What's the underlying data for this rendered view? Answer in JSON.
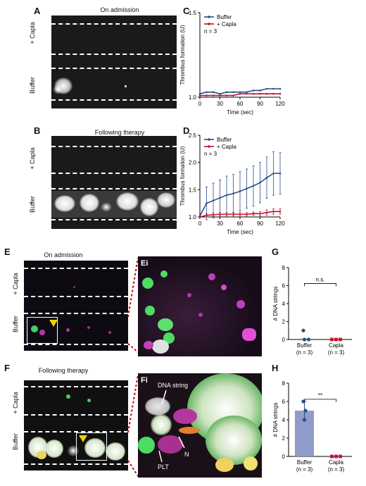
{
  "panels": {
    "A": {
      "letter": "A",
      "title": "On admission",
      "rows": [
        "+ Capla",
        "Buffer"
      ]
    },
    "B": {
      "letter": "B",
      "title": "Following therapy",
      "rows": [
        "+ Capla",
        "Buffer"
      ]
    },
    "E": {
      "letter": "E",
      "title": "On admission",
      "rows": [
        "+ Capla",
        "Buffer"
      ],
      "zoom_letter": "Ei"
    },
    "F": {
      "letter": "F",
      "title": "Following therapy",
      "rows": [
        "+ Capla",
        "Buffer"
      ],
      "zoom_letter": "Fi",
      "annotations": {
        "dna": "DNA string",
        "n": "N",
        "plt": "PLT"
      }
    },
    "C": {
      "letter": "C"
    },
    "D": {
      "letter": "D"
    },
    "G": {
      "letter": "G"
    },
    "H": {
      "letter": "H"
    }
  },
  "colors": {
    "buffer": "#2b4f8a",
    "capla": "#c8102e",
    "bar": "#8f9bc8",
    "arrow": "#f2d000",
    "zoom_line": "#cc0000"
  },
  "chart_data": [
    {
      "id": "C",
      "type": "line",
      "xlabel": "Time (sec)",
      "ylabel": "Thrombus formation (U)",
      "xlim": [
        0,
        120
      ],
      "ylim": [
        1.0,
        1.5
      ],
      "xticks": [
        0,
        30,
        60,
        90,
        120
      ],
      "yticks": [
        1.0,
        1.5
      ],
      "n_label": "n = 3",
      "legend": "top-left",
      "series": [
        {
          "name": "Buffer",
          "x": [
            0,
            10,
            20,
            30,
            40,
            50,
            60,
            70,
            80,
            90,
            100,
            110,
            120
          ],
          "y": [
            1.02,
            1.03,
            1.03,
            1.02,
            1.03,
            1.03,
            1.03,
            1.03,
            1.04,
            1.04,
            1.05,
            1.05,
            1.05
          ]
        },
        {
          "name": "+ Capla",
          "x": [
            0,
            10,
            20,
            30,
            40,
            50,
            60,
            70,
            80,
            90,
            100,
            110,
            120
          ],
          "y": [
            1.01,
            1.01,
            1.01,
            1.01,
            1.01,
            1.01,
            1.02,
            1.02,
            1.02,
            1.02,
            1.02,
            1.02,
            1.02
          ]
        }
      ]
    },
    {
      "id": "D",
      "type": "line",
      "xlabel": "Time (sec)",
      "ylabel": "Thrombus formation (U)",
      "xlim": [
        0,
        120
      ],
      "ylim": [
        1.0,
        2.5
      ],
      "xticks": [
        0,
        30,
        60,
        90,
        120
      ],
      "yticks": [
        1.0,
        1.5,
        2.0,
        2.5
      ],
      "n_label": "n = 3",
      "legend": "top-left",
      "series": [
        {
          "name": "Buffer",
          "x": [
            0,
            10,
            20,
            30,
            40,
            50,
            60,
            70,
            80,
            90,
            100,
            110,
            120
          ],
          "y": [
            1.02,
            1.25,
            1.3,
            1.35,
            1.4,
            1.43,
            1.47,
            1.52,
            1.57,
            1.63,
            1.72,
            1.8,
            1.8
          ],
          "err": [
            0.0,
            0.3,
            0.32,
            0.33,
            0.35,
            0.35,
            0.36,
            0.36,
            0.37,
            0.37,
            0.38,
            0.4,
            0.38
          ]
        },
        {
          "name": "+ Capla",
          "x": [
            0,
            10,
            20,
            30,
            40,
            50,
            60,
            70,
            80,
            90,
            100,
            110,
            120
          ],
          "y": [
            1.0,
            1.03,
            1.04,
            1.05,
            1.05,
            1.05,
            1.05,
            1.05,
            1.06,
            1.06,
            1.08,
            1.1,
            1.1
          ],
          "err": [
            0.0,
            0.03,
            0.03,
            0.03,
            0.03,
            0.03,
            0.03,
            0.03,
            0.03,
            0.04,
            0.05,
            0.05,
            0.05
          ]
        }
      ]
    },
    {
      "id": "G",
      "type": "bar",
      "ylabel": "# DNA strings",
      "ylim": [
        0,
        8
      ],
      "yticks": [
        0,
        2,
        4,
        6,
        8
      ],
      "categories": [
        "Buffer",
        "Capla"
      ],
      "sublabels": [
        "(n = 3)",
        "(n = 3)"
      ],
      "values": [
        0,
        0
      ],
      "points": [
        [
          1,
          0,
          0
        ],
        [
          0,
          0,
          0
        ]
      ],
      "significance": "n.s."
    },
    {
      "id": "H",
      "type": "bar",
      "ylabel": "# DNA strings",
      "ylim": [
        0,
        8
      ],
      "yticks": [
        0,
        2,
        4,
        6,
        8
      ],
      "categories": [
        "Buffer",
        "Capla"
      ],
      "sublabels": [
        "(n = 3)",
        "(n = 3)"
      ],
      "values": [
        5,
        0
      ],
      "err": [
        1,
        0
      ],
      "points": [
        [
          6,
          5,
          4
        ],
        [
          0,
          0,
          0
        ]
      ],
      "significance": "**"
    }
  ]
}
